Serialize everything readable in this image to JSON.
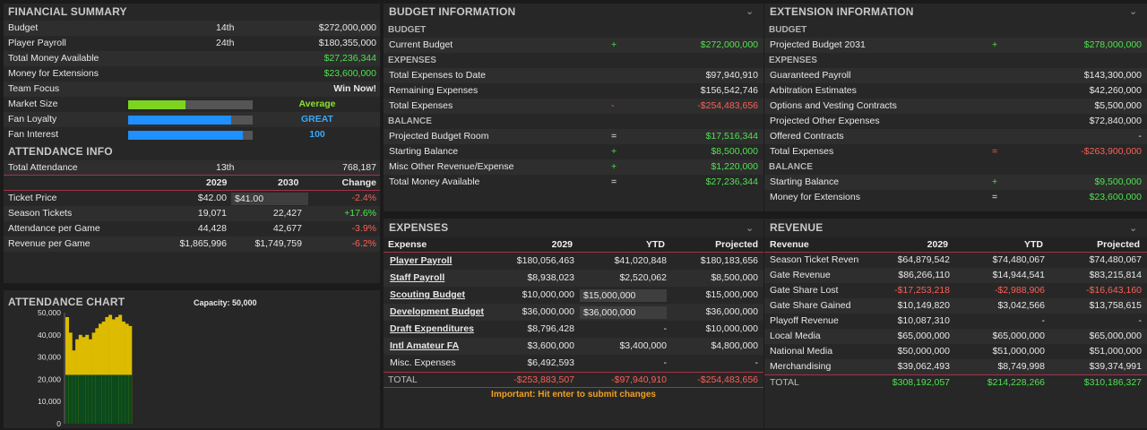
{
  "financial_summary": {
    "title": "FINANCIAL SUMMARY",
    "rows": [
      {
        "label": "Budget",
        "rank": "14th",
        "value": "$272,000,000"
      },
      {
        "label": "Player Payroll",
        "rank": "24th",
        "value": "$180,355,000"
      },
      {
        "label": "Total Money Available",
        "rank": "",
        "value": "$27,236,344"
      },
      {
        "label": "Money for Extensions",
        "rank": "",
        "value": "$23,600,000"
      },
      {
        "label": "Team Focus",
        "rank": "",
        "value": "Win Now!"
      }
    ],
    "bars": [
      {
        "label": "Market Size",
        "value_text": "Average",
        "fraction": 0.46,
        "color": "#7ed321"
      },
      {
        "label": "Fan Loyalty",
        "value_text": "GREAT",
        "fraction": 0.83,
        "color": "#1e90ff"
      },
      {
        "label": "Fan Interest",
        "value_text": "100",
        "fraction": 0.92,
        "color": "#1e90ff"
      }
    ]
  },
  "attendance_info": {
    "title": "ATTENDANCE INFO",
    "total": {
      "label": "Total Attendance",
      "rank": "13th",
      "value": "768,187"
    },
    "headers": {
      "y1": "2029",
      "y2": "2030",
      "change": "Change"
    },
    "rows": [
      {
        "label": "Ticket Price",
        "y1": "$42.00",
        "y2": "$41.00",
        "change": "-2.4%",
        "change_class": "red"
      },
      {
        "label": "Season Tickets",
        "y1": "19,071",
        "y2": "22,427",
        "change": "+17.6%",
        "change_class": "green"
      },
      {
        "label": "Attendance per Game",
        "y1": "44,428",
        "y2": "42,677",
        "change": "-3.9%",
        "change_class": "red"
      },
      {
        "label": "Revenue per Game",
        "y1": "$1,865,996",
        "y2": "$1,749,759",
        "change": "-6.2%",
        "change_class": "red"
      }
    ]
  },
  "attendance_chart": {
    "title": "ATTENDANCE CHART",
    "capacity_label": "Capacity: 50,000",
    "y_ticks": [
      "50,000",
      "40,000",
      "30,000",
      "20,000",
      "10,000",
      "0"
    ]
  },
  "chart_data": {
    "type": "bar",
    "ylim": [
      0,
      50000
    ],
    "capacity": 50000,
    "season_tickets": 22000,
    "values": [
      48000,
      41000,
      33000,
      38000,
      40000,
      39000,
      40000,
      38000,
      41000,
      43000,
      45000,
      46000,
      48000,
      49000,
      47000,
      48000,
      49000,
      46000,
      45000,
      44000
    ]
  },
  "budget_info": {
    "title": "BUDGET INFORMATION",
    "sections": [
      {
        "name": "BUDGET",
        "rows": [
          {
            "label": "Current Budget",
            "op": "+",
            "op_class": "green",
            "value": "$272,000,000",
            "value_class": "green"
          }
        ]
      },
      {
        "name": "EXPENSES",
        "rows": [
          {
            "label": "Total Expenses to Date",
            "op": "",
            "op_class": "",
            "value": "$97,940,910",
            "value_class": ""
          },
          {
            "label": "Remaining Expenses",
            "op": "",
            "op_class": "",
            "value": "$156,542,746",
            "value_class": ""
          },
          {
            "label": "Total Expenses",
            "op": "-",
            "op_class": "red",
            "value": "-$254,483,656",
            "value_class": "red"
          }
        ]
      },
      {
        "name": "BALANCE",
        "rows": [
          {
            "label": "Projected Budget Room",
            "op": "=",
            "op_class": "",
            "value": "$17,516,344",
            "value_class": "green"
          },
          {
            "label": "Starting Balance",
            "op": "+",
            "op_class": "green",
            "value": "$8,500,000",
            "value_class": "green"
          },
          {
            "label": "Misc Other Revenue/Expense",
            "op": "+",
            "op_class": "green",
            "value": "$1,220,000",
            "value_class": "green"
          },
          {
            "label": "Total Money Available",
            "op": "=",
            "op_class": "",
            "value": "$27,236,344",
            "value_class": "green"
          }
        ]
      }
    ]
  },
  "extension_info": {
    "title": "EXTENSION INFORMATION",
    "sections": [
      {
        "name": "BUDGET",
        "rows": [
          {
            "label": "Projected Budget 2031",
            "op": "+",
            "op_class": "green",
            "value": "$278,000,000",
            "value_class": "green"
          }
        ]
      },
      {
        "name": "EXPENSES",
        "rows": [
          {
            "label": "Guaranteed Payroll",
            "op": "",
            "op_class": "",
            "value": "$143,300,000",
            "value_class": ""
          },
          {
            "label": "Arbitration Estimates",
            "op": "",
            "op_class": "",
            "value": "$42,260,000",
            "value_class": ""
          },
          {
            "label": "Options and Vesting Contracts",
            "op": "",
            "op_class": "",
            "value": "$5,500,000",
            "value_class": ""
          },
          {
            "label": "Projected Other Expenses",
            "op": "",
            "op_class": "",
            "value": "$72,840,000",
            "value_class": ""
          },
          {
            "label": "Offered Contracts",
            "op": "",
            "op_class": "",
            "value": "-",
            "value_class": ""
          },
          {
            "label": "Total Expenses",
            "op": "=",
            "op_class": "red",
            "value": "-$263,900,000",
            "value_class": "red"
          }
        ]
      },
      {
        "name": "BALANCE",
        "rows": [
          {
            "label": "Starting Balance",
            "op": "+",
            "op_class": "green",
            "value": "$9,500,000",
            "value_class": "green"
          },
          {
            "label": "Money for Extensions",
            "op": "=",
            "op_class": "",
            "value": "$23,600,000",
            "value_class": "green"
          }
        ]
      }
    ]
  },
  "expenses": {
    "title": "EXPENSES",
    "headers": {
      "name": "Expense",
      "y": "2029",
      "ytd": "YTD",
      "proj": "Projected"
    },
    "rows": [
      {
        "name": "Player Payroll",
        "link": true,
        "y": "$180,056,463",
        "ytd": "$41,020,848",
        "ytd_input": false,
        "proj": "$180,183,656"
      },
      {
        "name": "Staff Payroll",
        "link": true,
        "y": "$8,938,023",
        "ytd": "$2,520,062",
        "ytd_input": false,
        "proj": "$8,500,000"
      },
      {
        "name": "Scouting Budget",
        "link": true,
        "y": "$10,000,000",
        "ytd": "$15,000,000",
        "ytd_input": true,
        "proj": "$15,000,000"
      },
      {
        "name": "Development Budget",
        "link": true,
        "y": "$36,000,000",
        "ytd": "$36,000,000",
        "ytd_input": true,
        "proj": "$36,000,000"
      },
      {
        "name": "Draft Expenditures",
        "link": true,
        "y": "$8,796,428",
        "ytd": "-",
        "ytd_input": false,
        "proj": "$10,000,000"
      },
      {
        "name": "Intl Amateur FA",
        "link": true,
        "y": "$3,600,000",
        "ytd": "$3,400,000",
        "ytd_input": false,
        "proj": "$4,800,000"
      },
      {
        "name": "Misc. Expenses",
        "link": false,
        "y": "$6,492,593",
        "ytd": "-",
        "ytd_input": false,
        "proj": "-"
      }
    ],
    "total": {
      "name": "TOTAL",
      "y": "-$253,883,507",
      "ytd": "-$97,940,910",
      "proj": "-$254,483,656"
    },
    "note": "Important: Hit enter to submit changes"
  },
  "revenue": {
    "title": "REVENUE",
    "headers": {
      "name": "Revenue",
      "y": "2029",
      "ytd": "YTD",
      "proj": "Projected"
    },
    "rows": [
      {
        "name": "Season Ticket Revenu",
        "y": "$64,879,542",
        "y_class": "",
        "ytd": "$74,480,067",
        "ytd_class": "",
        "proj": "$74,480,067",
        "proj_class": ""
      },
      {
        "name": "Gate Revenue",
        "y": "$86,266,110",
        "y_class": "",
        "ytd": "$14,944,541",
        "ytd_class": "",
        "proj": "$83,215,814",
        "proj_class": ""
      },
      {
        "name": "Gate Share Lost",
        "y": "-$17,253,218",
        "y_class": "red",
        "ytd": "-$2,988,906",
        "ytd_class": "red",
        "proj": "-$16,643,160",
        "proj_class": "red"
      },
      {
        "name": "Gate Share Gained",
        "y": "$10,149,820",
        "y_class": "",
        "ytd": "$3,042,566",
        "ytd_class": "",
        "proj": "$13,758,615",
        "proj_class": ""
      },
      {
        "name": "Playoff Revenue",
        "y": "$10,087,310",
        "y_class": "",
        "ytd": "-",
        "ytd_class": "",
        "proj": "-",
        "proj_class": ""
      },
      {
        "name": "Local Media",
        "y": "$65,000,000",
        "y_class": "",
        "ytd": "$65,000,000",
        "ytd_class": "",
        "proj": "$65,000,000",
        "proj_class": ""
      },
      {
        "name": "National Media",
        "y": "$50,000,000",
        "y_class": "",
        "ytd": "$51,000,000",
        "ytd_class": "",
        "proj": "$51,000,000",
        "proj_class": ""
      },
      {
        "name": "Merchandising",
        "y": "$39,062,493",
        "y_class": "",
        "ytd": "$8,749,998",
        "ytd_class": "",
        "proj": "$39,374,991",
        "proj_class": ""
      }
    ],
    "total": {
      "name": "TOTAL",
      "y": "$308,192,057",
      "ytd": "$214,228,266",
      "proj": "$310,186,327"
    }
  }
}
